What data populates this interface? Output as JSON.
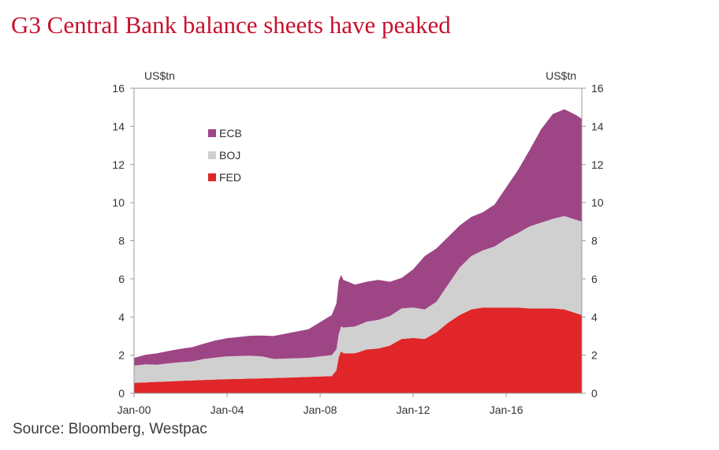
{
  "title": "G3 Central Bank balance sheets have peaked",
  "source": "Source: Bloomberg, Westpac",
  "chart_data": {
    "type": "area",
    "stacked": true,
    "left_unit": "US$tn",
    "right_unit": "US$tn",
    "x_ticks": [
      "Jan-00",
      "Jan-04",
      "Jan-08",
      "Jan-12",
      "Jan-16"
    ],
    "y_ticks": [
      "0",
      "2",
      "4",
      "6",
      "8",
      "10",
      "12",
      "14",
      "16"
    ],
    "ylim": [
      0,
      16
    ],
    "xlim": [
      2000.0,
      2019.25
    ],
    "legend_position": "upper-left inside",
    "x": [
      2000.0,
      2000.5,
      2001.0,
      2001.5,
      2002.0,
      2002.5,
      2003.0,
      2003.5,
      2004.0,
      2004.5,
      2005.0,
      2005.5,
      2006.0,
      2006.5,
      2007.0,
      2007.5,
      2008.0,
      2008.5,
      2008.7,
      2008.8,
      2008.9,
      2009.0,
      2009.5,
      2010.0,
      2010.5,
      2011.0,
      2011.5,
      2012.0,
      2012.5,
      2013.0,
      2013.5,
      2014.0,
      2014.5,
      2015.0,
      2015.5,
      2016.0,
      2016.5,
      2017.0,
      2017.5,
      2018.0,
      2018.5,
      2019.0,
      2019.25
    ],
    "series": [
      {
        "name": "FED",
        "color": "#e02628",
        "values": [
          0.55,
          0.57,
          0.6,
          0.62,
          0.65,
          0.67,
          0.7,
          0.72,
          0.74,
          0.75,
          0.77,
          0.78,
          0.8,
          0.82,
          0.84,
          0.86,
          0.88,
          0.9,
          1.2,
          1.9,
          2.2,
          2.1,
          2.1,
          2.3,
          2.35,
          2.5,
          2.85,
          2.9,
          2.85,
          3.2,
          3.7,
          4.1,
          4.4,
          4.5,
          4.5,
          4.5,
          4.5,
          4.45,
          4.45,
          4.45,
          4.4,
          4.2,
          4.1
        ]
      },
      {
        "name": "BOJ",
        "color": "#d0d0d0",
        "values": [
          0.9,
          0.95,
          0.9,
          0.95,
          0.98,
          1.0,
          1.1,
          1.15,
          1.2,
          1.2,
          1.2,
          1.15,
          1.0,
          1.0,
          1.0,
          1.0,
          1.05,
          1.1,
          1.1,
          1.2,
          1.3,
          1.35,
          1.4,
          1.45,
          1.5,
          1.55,
          1.6,
          1.6,
          1.55,
          1.6,
          2.0,
          2.5,
          2.8,
          3.0,
          3.2,
          3.6,
          3.9,
          4.3,
          4.5,
          4.7,
          4.9,
          4.9,
          4.9
        ]
      },
      {
        "name": "ECB",
        "color": "#9e4586",
        "values": [
          0.4,
          0.5,
          0.6,
          0.65,
          0.7,
          0.75,
          0.8,
          0.9,
          0.95,
          1.0,
          1.05,
          1.1,
          1.2,
          1.3,
          1.4,
          1.5,
          1.8,
          2.1,
          2.4,
          2.8,
          2.7,
          2.5,
          2.2,
          2.1,
          2.1,
          1.8,
          1.6,
          2.0,
          2.8,
          2.8,
          2.5,
          2.2,
          2.05,
          2.0,
          2.2,
          2.7,
          3.3,
          4.0,
          4.9,
          5.5,
          5.6,
          5.5,
          5.4
        ]
      }
    ]
  }
}
